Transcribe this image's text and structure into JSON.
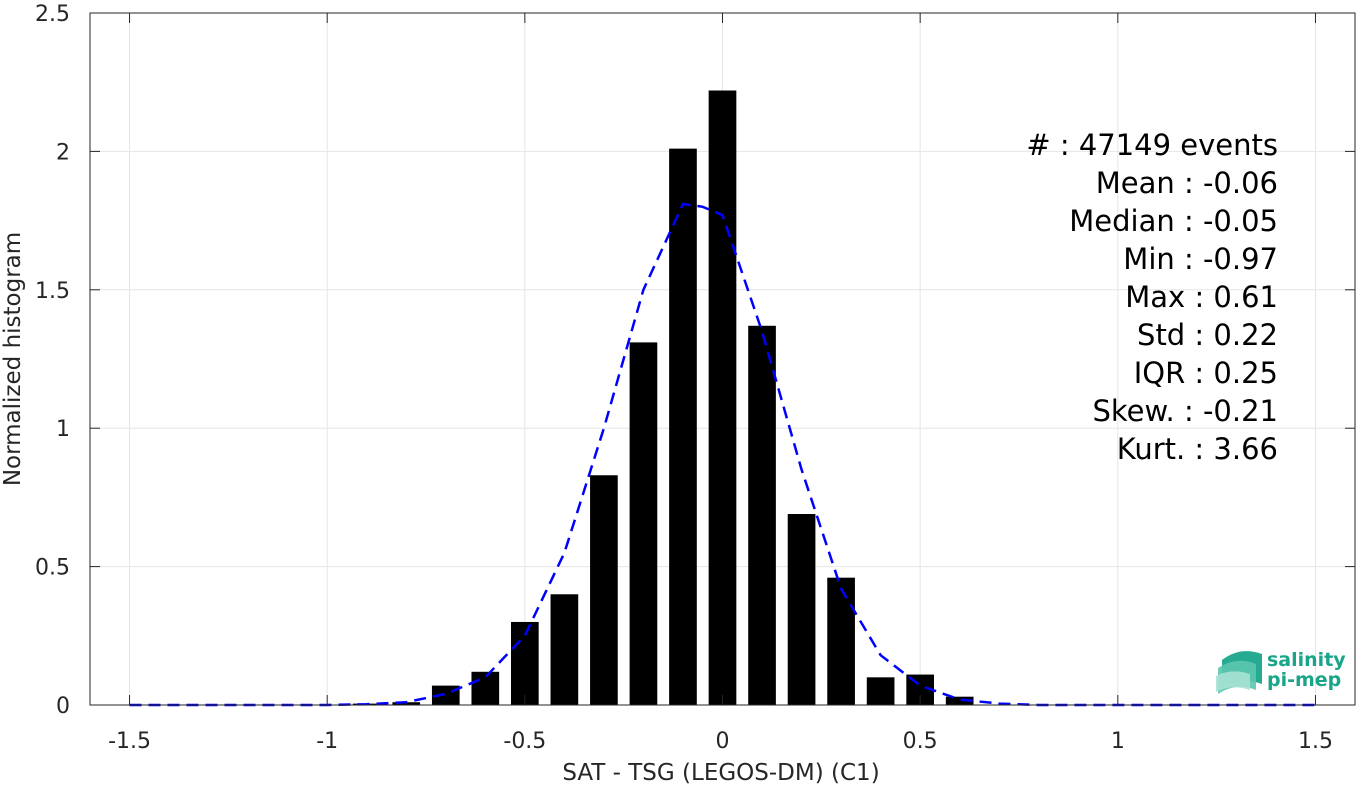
{
  "chart_data": {
    "type": "bar",
    "xlabel": "SAT - TSG (LEGOS-DM) (C1)",
    "ylabel": "Normalized histogram",
    "xlim": [
      -1.6,
      1.6
    ],
    "ylim": [
      0,
      2.5
    ],
    "xticks": [
      "-1.5",
      "-1",
      "-0.5",
      "0",
      "0.5",
      "1",
      "1.5"
    ],
    "yticks": [
      "0",
      "0.5",
      "1",
      "1.5",
      "2",
      "2.5"
    ],
    "grid": true,
    "bar_color": "#000000",
    "bars": [
      {
        "x": -0.9,
        "value": 0.005
      },
      {
        "x": -0.8,
        "value": 0.01
      },
      {
        "x": -0.7,
        "value": 0.07
      },
      {
        "x": -0.6,
        "value": 0.12
      },
      {
        "x": -0.5,
        "value": 0.3
      },
      {
        "x": -0.4,
        "value": 0.4
      },
      {
        "x": -0.3,
        "value": 0.83
      },
      {
        "x": -0.2,
        "value": 1.31
      },
      {
        "x": -0.1,
        "value": 2.01
      },
      {
        "x": 0.0,
        "value": 2.22
      },
      {
        "x": 0.1,
        "value": 1.37
      },
      {
        "x": 0.2,
        "value": 0.69
      },
      {
        "x": 0.3,
        "value": 0.46
      },
      {
        "x": 0.4,
        "value": 0.1
      },
      {
        "x": 0.5,
        "value": 0.11
      },
      {
        "x": 0.6,
        "value": 0.03
      }
    ],
    "fit_curve": {
      "style": "dashed",
      "color": "#0000ff",
      "x": [
        -1.5,
        -1.0,
        -0.9,
        -0.8,
        -0.7,
        -0.6,
        -0.5,
        -0.4,
        -0.3,
        -0.2,
        -0.1,
        -0.05,
        0.0,
        0.1,
        0.2,
        0.3,
        0.4,
        0.5,
        0.6,
        0.7,
        0.8,
        1.0,
        1.5
      ],
      "y": [
        0.0,
        0.0,
        0.003,
        0.01,
        0.04,
        0.1,
        0.25,
        0.55,
        1.0,
        1.5,
        1.81,
        1.8,
        1.77,
        1.35,
        0.85,
        0.42,
        0.18,
        0.07,
        0.02,
        0.005,
        0.0,
        0.0,
        0.0
      ]
    },
    "stats": [
      "#  : 47149 events",
      "Mean : -0.06",
      "Median : -0.05",
      "Min : -0.97",
      "Max : 0.61",
      "Std : 0.22",
      "IQR : 0.25",
      "Skew. : -0.21",
      "Kurt. : 3.66"
    ]
  },
  "logo": {
    "line1": "salinity",
    "line2": "pi-mep",
    "color": "#1aa58b"
  }
}
